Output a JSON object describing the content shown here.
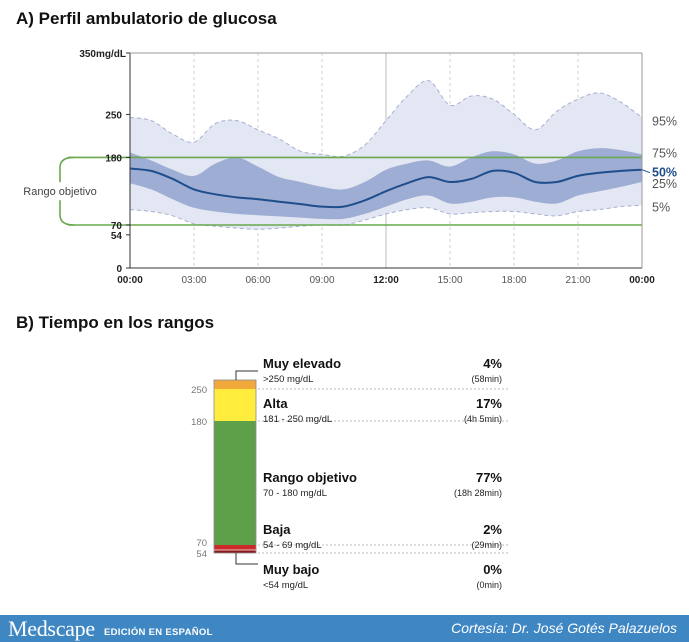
{
  "agp": {
    "title": "A) Perfil ambulatorio de glucosa",
    "target_label": "Rango objetivo",
    "y_unit": "mg/dL"
  },
  "tir": {
    "title": "B) Tiempo en los rangos"
  },
  "footer": {
    "brand": "Medscape",
    "brand_sub": "EDICIÓN EN ESPAÑOL",
    "credit": "Cortesía: Dr. José Gotés Palazuelos"
  },
  "colors": {
    "band_outer": "#e3e6f3",
    "band_inner": "#9dadd3",
    "median": "#1f4e8c",
    "target_line": "#6aa84f",
    "very_high": "#f2a93b",
    "high": "#ffec3d",
    "in_range": "#5ea04a",
    "low": "#cc2b2b",
    "very_low": "#8b1a1a"
  },
  "chart_data": [
    {
      "type": "area",
      "title": "A) Perfil ambulatorio de glucosa",
      "xlabel": "",
      "ylabel": "",
      "x_ticks": [
        "00:00",
        "03:00",
        "06:00",
        "09:00",
        "12:00",
        "15:00",
        "18:00",
        "21:00",
        "00:00"
      ],
      "y_ticks": [
        0,
        54,
        70,
        180,
        250,
        350
      ],
      "y_top_label": "350mg/dL",
      "ylim": [
        0,
        350
      ],
      "xlim": [
        0,
        24
      ],
      "target_range": [
        70,
        180
      ],
      "x": [
        0,
        1,
        2,
        3,
        4,
        5,
        6,
        7,
        8,
        9,
        10,
        11,
        12,
        13,
        14,
        15,
        16,
        17,
        18,
        19,
        20,
        21,
        22,
        23,
        24
      ],
      "series": [
        {
          "name": "95%",
          "values": [
            245,
            240,
            218,
            205,
            235,
            240,
            225,
            210,
            190,
            185,
            182,
            200,
            240,
            280,
            305,
            265,
            280,
            275,
            250,
            225,
            255,
            275,
            285,
            270,
            245
          ]
        },
        {
          "name": "75%",
          "values": [
            188,
            175,
            160,
            150,
            170,
            180,
            165,
            148,
            140,
            132,
            128,
            140,
            160,
            170,
            175,
            165,
            180,
            190,
            185,
            170,
            175,
            190,
            195,
            192,
            185
          ]
        },
        {
          "name": "50%",
          "values": [
            162,
            158,
            145,
            128,
            120,
            115,
            112,
            108,
            104,
            100,
            100,
            110,
            125,
            138,
            148,
            140,
            145,
            158,
            155,
            140,
            140,
            150,
            155,
            158,
            160
          ]
        },
        {
          "name": "25%",
          "values": [
            138,
            128,
            112,
            98,
            92,
            88,
            86,
            84,
            82,
            80,
            80,
            88,
            100,
            112,
            118,
            105,
            108,
            115,
            115,
            108,
            105,
            118,
            125,
            132,
            140
          ]
        },
        {
          "name": "5%",
          "values": [
            95,
            92,
            85,
            72,
            68,
            65,
            63,
            65,
            68,
            70,
            70,
            78,
            88,
            95,
            98,
            88,
            90,
            92,
            92,
            88,
            85,
            92,
            95,
            100,
            102
          ]
        }
      ]
    },
    {
      "type": "bar",
      "title": "B) Tiempo en los rangos",
      "y_ticks": [
        54,
        70,
        180,
        250
      ],
      "categories": [
        "Muy elevado",
        "Alta",
        "Rango objetivo",
        "Baja",
        "Muy bajo"
      ],
      "ranges": [
        ">250 mg/dL",
        "181 - 250 mg/dL",
        "70 - 180 mg/dL",
        "54 - 69 mg/dL",
        "<54 mg/dL"
      ],
      "percent_labels": [
        "4%",
        "17%",
        "77%",
        "2%",
        "0%"
      ],
      "values": [
        4,
        17,
        77,
        2,
        0
      ],
      "durations": [
        "(58min)",
        "(4h 5min)",
        "(18h 28min)",
        "(29min)",
        "(0min)"
      ]
    }
  ]
}
